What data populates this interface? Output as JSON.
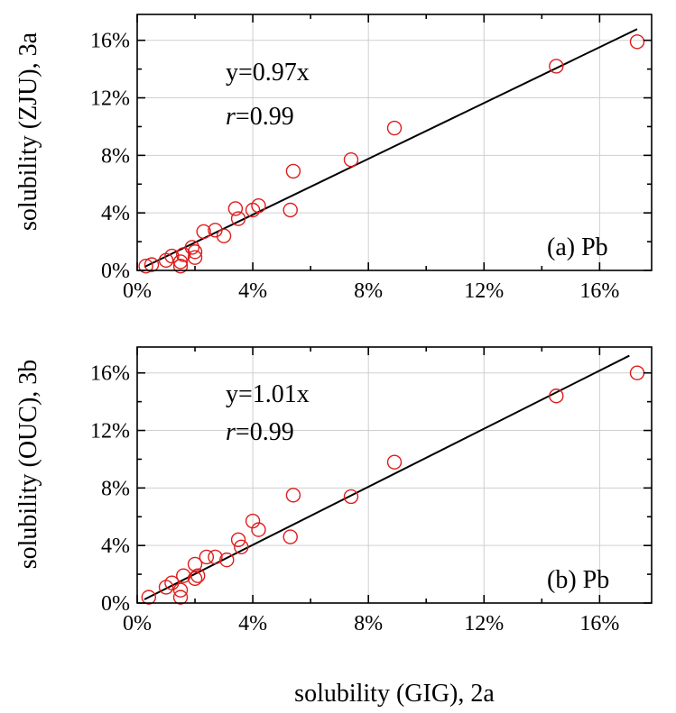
{
  "chart_data": [
    {
      "type": "scatter",
      "panel_label": "(a) Pb",
      "ylabel": "solubility (ZJU), 3a",
      "xlabel": "",
      "xlim": [
        0,
        17.8
      ],
      "ylim": [
        0,
        17.8
      ],
      "x_ticks": [
        "0%",
        "4%",
        "8%",
        "12%",
        "16%"
      ],
      "y_ticks": [
        "0%",
        "4%",
        "8%",
        "12%",
        "16%"
      ],
      "grid": true,
      "fit": {
        "equation": "y=0.97x",
        "r_symbol": "r",
        "r_value": "=0.99",
        "slope": 0.97
      },
      "series": [
        {
          "color": "#e01b1b",
          "marker": "open-circle",
          "points": [
            [
              0.3,
              0.3
            ],
            [
              0.5,
              0.4
            ],
            [
              1.0,
              0.7
            ],
            [
              1.2,
              1.0
            ],
            [
              1.5,
              0.6
            ],
            [
              1.5,
              0.3
            ],
            [
              1.6,
              1.1
            ],
            [
              1.9,
              1.6
            ],
            [
              2.0,
              1.3
            ],
            [
              2.0,
              0.9
            ],
            [
              2.3,
              2.7
            ],
            [
              2.7,
              2.8
            ],
            [
              3.0,
              2.4
            ],
            [
              3.4,
              4.3
            ],
            [
              3.5,
              3.6
            ],
            [
              4.0,
              4.2
            ],
            [
              4.2,
              4.5
            ],
            [
              5.3,
              4.2
            ],
            [
              5.4,
              6.9
            ],
            [
              7.4,
              7.7
            ],
            [
              8.9,
              9.9
            ],
            [
              14.5,
              14.2
            ],
            [
              17.3,
              15.9
            ]
          ]
        }
      ]
    },
    {
      "type": "scatter",
      "panel_label": "(b) Pb",
      "ylabel": "solubility (OUC), 3b",
      "xlabel": "solubility (GIG), 2a",
      "xlim": [
        0,
        17.8
      ],
      "ylim": [
        0,
        17.8
      ],
      "x_ticks": [
        "0%",
        "4%",
        "8%",
        "12%",
        "16%"
      ],
      "y_ticks": [
        "0%",
        "4%",
        "8%",
        "12%",
        "16%"
      ],
      "grid": true,
      "fit": {
        "equation": "y=1.01x",
        "r_symbol": "r",
        "r_value": "=0.99",
        "slope": 1.01
      },
      "series": [
        {
          "color": "#e01b1b",
          "marker": "open-circle",
          "points": [
            [
              0.4,
              0.4
            ],
            [
              1.0,
              1.1
            ],
            [
              1.2,
              1.4
            ],
            [
              1.5,
              0.9
            ],
            [
              1.5,
              0.4
            ],
            [
              1.6,
              1.9
            ],
            [
              2.0,
              2.7
            ],
            [
              2.0,
              1.7
            ],
            [
              2.1,
              1.9
            ],
            [
              2.4,
              3.2
            ],
            [
              2.7,
              3.2
            ],
            [
              3.1,
              3.0
            ],
            [
              3.5,
              4.4
            ],
            [
              3.6,
              3.9
            ],
            [
              4.0,
              5.7
            ],
            [
              4.2,
              5.1
            ],
            [
              5.3,
              4.6
            ],
            [
              5.4,
              7.5
            ],
            [
              7.4,
              7.4
            ],
            [
              8.9,
              9.8
            ],
            [
              14.5,
              14.4
            ],
            [
              17.3,
              16.0
            ]
          ]
        }
      ]
    }
  ]
}
